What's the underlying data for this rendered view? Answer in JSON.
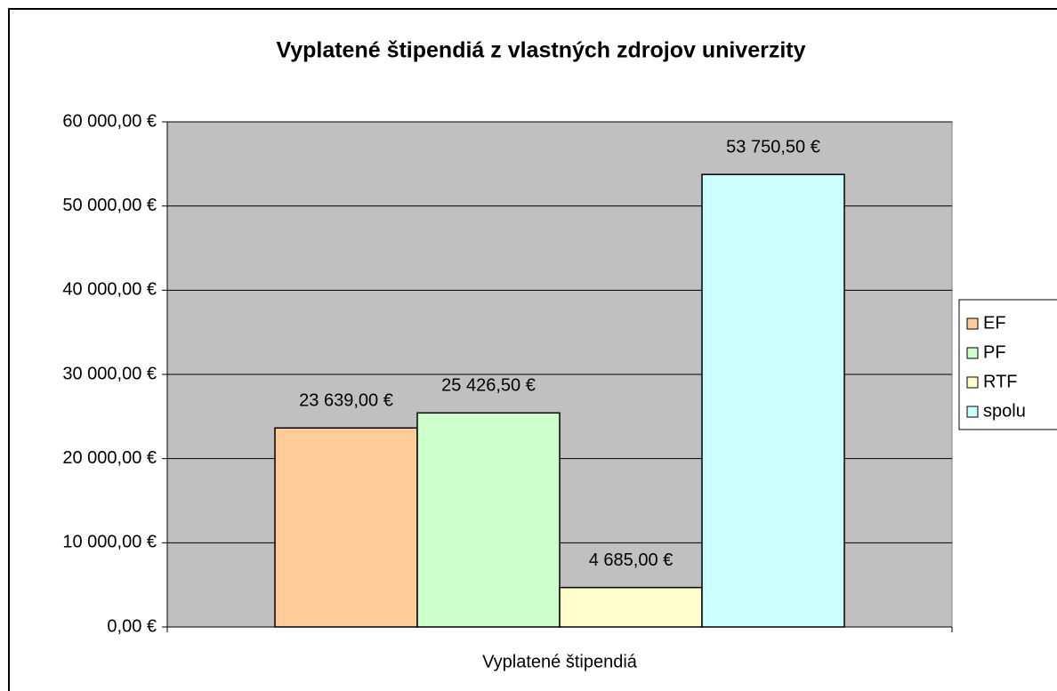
{
  "chart_data": {
    "type": "bar",
    "title": "Vyplatené štipendiá z vlastných zdrojov univerzity",
    "categories": [
      "Vyplatené štipendiá"
    ],
    "series": [
      {
        "name": "EF",
        "color": "#ffcc99",
        "values": [
          23639
        ],
        "value_labels": [
          "23 639,00 €"
        ]
      },
      {
        "name": "PF",
        "color": "#ccffcc",
        "values": [
          25426.5
        ],
        "value_labels": [
          "25 426,50 €"
        ]
      },
      {
        "name": "RTF",
        "color": "#ffffcc",
        "values": [
          4685
        ],
        "value_labels": [
          "4 685,00 €"
        ]
      },
      {
        "name": "spolu",
        "color": "#ccffff",
        "values": [
          53750.5
        ],
        "value_labels": [
          "53 750,50 €"
        ]
      }
    ],
    "ylim": [
      0,
      60000
    ],
    "yticks": [
      {
        "value": 0,
        "label": "0,00 €"
      },
      {
        "value": 10000,
        "label": "10 000,00 €"
      },
      {
        "value": 20000,
        "label": "20 000,00 €"
      },
      {
        "value": 30000,
        "label": "30 000,00 €"
      },
      {
        "value": 40000,
        "label": "40 000,00 €"
      },
      {
        "value": 50000,
        "label": "50 000,00 €"
      },
      {
        "value": 60000,
        "label": "60 000,00 €"
      }
    ],
    "grid": true,
    "plot_background": "#c0c0c0",
    "legend": "right"
  }
}
